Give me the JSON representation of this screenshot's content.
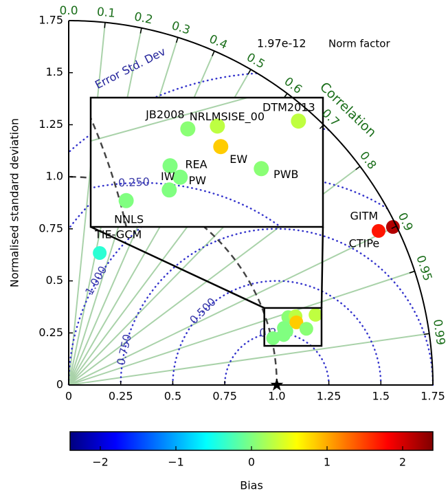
{
  "chart_data": {
    "type": "taylor",
    "ylabel": "Normalised standard deviation",
    "xlim": [
      0,
      1.75
    ],
    "ylim": [
      0,
      1.75
    ],
    "xticks": [
      0,
      0.25,
      0.5,
      0.75,
      {
        "value": 1,
        "label": "1.0"
      },
      1.25,
      1.5,
      1.75
    ],
    "yticks": [
      0,
      0.25,
      0.5,
      0.75,
      {
        "value": 1,
        "label": "1.0"
      },
      1.25,
      1.5,
      1.75
    ],
    "correlation_label": "Correlation",
    "correlation_ticks": [
      {
        "value": 0,
        "label": "0.0"
      },
      0.1,
      0.2,
      0.3,
      0.4,
      0.5,
      0.6,
      0.7,
      0.8,
      0.9,
      0.95,
      0.99
    ],
    "rms_label": "Error Std. Dev",
    "rms_levels": [
      {
        "value": 0.25,
        "label": "0.250"
      },
      {
        "value": 0.5,
        "label": "0.500"
      },
      {
        "value": 0.75,
        "label": "0.750"
      },
      {
        "value": 1,
        "label": "1.000"
      },
      {
        "value": 1.25,
        "label": null
      },
      {
        "value": 1.5,
        "label": null
      }
    ],
    "reference_std": 1,
    "norm_factor": 1.97e-12,
    "norm_factor_label": "Norm factor",
    "grid": true,
    "points": [
      {
        "label": "JB2008",
        "x": 1.055,
        "y": 0.326,
        "bias": 0.05
      },
      {
        "label": "NRLMSISE_00",
        "x": 1.09,
        "y": 0.33,
        "bias": 0.29
      },
      {
        "label": "DTM2013",
        "x": 1.186,
        "y": 0.337,
        "bias": 0.3
      },
      {
        "label": "EW",
        "x": 1.094,
        "y": 0.301,
        "bias": 0.84
      },
      {
        "label": "REA",
        "x": 1.034,
        "y": 0.274,
        "bias": 0
      },
      {
        "label": "PW",
        "x": 1.046,
        "y": 0.258,
        "bias": 0
      },
      {
        "label": "IW",
        "x": 1.033,
        "y": 0.24,
        "bias": 0
      },
      {
        "label": "PWB",
        "x": 1.142,
        "y": 0.27,
        "bias": 0.05
      },
      {
        "label": "NNLS",
        "x": 0.982,
        "y": 0.225,
        "bias": 0
      },
      {
        "label": "TIE-GCM",
        "x": 0.149,
        "y": 0.634,
        "bias": -0.4
      },
      {
        "label": "GITM",
        "x": 1.558,
        "y": 0.759,
        "bias": 2.16
      },
      {
        "label": "CTIPe",
        "x": 1.489,
        "y": 0.74,
        "bias": 1.7
      }
    ],
    "inset": {
      "xlim": [
        0.94,
        1.215
      ],
      "ylim": [
        0.188,
        0.37
      ]
    },
    "colorbar": {
      "label": "Bias",
      "colormap": "jet",
      "clim": [
        -2.4,
        2.4
      ],
      "ticks": [
        {
          "value": -2,
          "label": "−2"
        },
        {
          "value": -1,
          "label": "−1"
        },
        0,
        1,
        2
      ]
    }
  }
}
